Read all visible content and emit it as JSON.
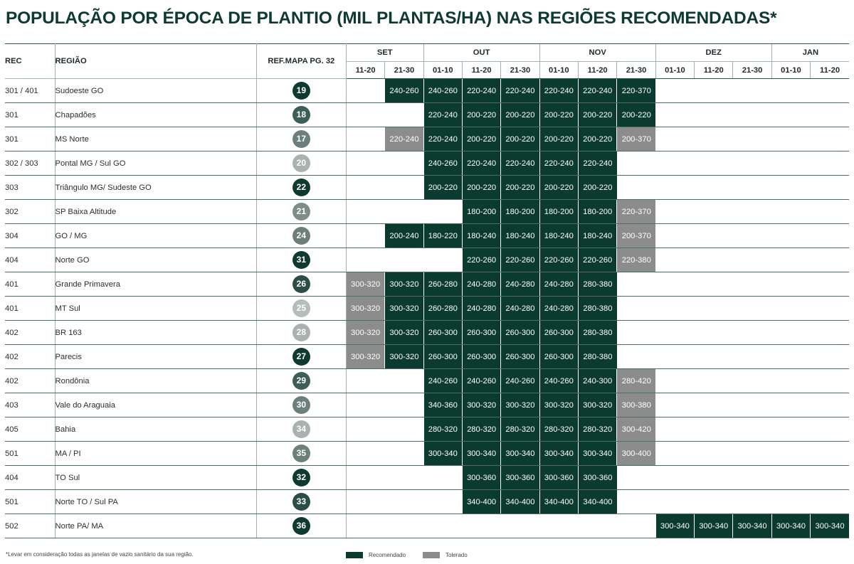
{
  "title": "POPULAÇÃO POR ÉPOCA DE PLANTIO (MIL PLANTAS/HA) NAS REGIÕES RECOMENDADAS*",
  "colors": {
    "recommended": "#0b3a2f",
    "tolerated": "#8c8c8c"
  },
  "header": {
    "rec": "REC",
    "region": "REGIÃO",
    "ref": "REF.MAPA PG. 32",
    "months": [
      {
        "name": "SET",
        "span": 2
      },
      {
        "name": "OUT",
        "span": 3
      },
      {
        "name": "NOV",
        "span": 3
      },
      {
        "name": "DEZ",
        "span": 3
      },
      {
        "name": "JAN",
        "span": 2
      }
    ],
    "periods": [
      "11-20",
      "21-30",
      "01-10",
      "11-20",
      "21-30",
      "01-10",
      "11-20",
      "21-30",
      "01-10",
      "11-20",
      "21-30",
      "01-10",
      "11-20"
    ]
  },
  "rows": [
    {
      "rec": "301 / 401",
      "region": "Sudoeste GO",
      "ref": "19",
      "ref_color": "#0e3a30",
      "cells": [
        null,
        [
          "240-260",
          "r"
        ],
        [
          "240-260",
          "r"
        ],
        [
          "220-240",
          "r"
        ],
        [
          "220-240",
          "r"
        ],
        [
          "220-240",
          "r"
        ],
        [
          "220-240",
          "r"
        ],
        [
          "220-370",
          "r"
        ],
        null,
        null,
        null,
        null,
        null
      ]
    },
    {
      "rec": "301",
      "region": "Chapadões",
      "ref": "18",
      "ref_color": "#3d5e56",
      "cells": [
        null,
        null,
        [
          "220-240",
          "r"
        ],
        [
          "200-220",
          "r"
        ],
        [
          "200-220",
          "r"
        ],
        [
          "200-220",
          "r"
        ],
        [
          "200-220",
          "r"
        ],
        [
          "200-220",
          "r"
        ],
        null,
        null,
        null,
        null,
        null
      ]
    },
    {
      "rec": "301",
      "region": "MS Norte",
      "ref": "17",
      "ref_color": "#6c7f7a",
      "cells": [
        null,
        [
          "220-240",
          "t"
        ],
        [
          "220-240",
          "r"
        ],
        [
          "200-220",
          "r"
        ],
        [
          "200-220",
          "r"
        ],
        [
          "200-220",
          "r"
        ],
        [
          "200-220",
          "r"
        ],
        [
          "200-370",
          "t"
        ],
        null,
        null,
        null,
        null,
        null
      ]
    },
    {
      "rec": "302 / 303",
      "region": "Pontal MG / Sul GO",
      "ref": "20",
      "ref_color": "#a9b2ae",
      "cells": [
        null,
        null,
        [
          "240-260",
          "r"
        ],
        [
          "220-240",
          "r"
        ],
        [
          "220-240",
          "r"
        ],
        [
          "220-240",
          "r"
        ],
        [
          "220-240",
          "r"
        ],
        null,
        null,
        null,
        null,
        null,
        null
      ]
    },
    {
      "rec": "303",
      "region": "Triângulo MG/ Sudeste GO",
      "ref": "22",
      "ref_color": "#0e3a30",
      "cells": [
        null,
        null,
        [
          "200-220",
          "r"
        ],
        [
          "200-220",
          "r"
        ],
        [
          "200-220",
          "r"
        ],
        [
          "200-220",
          "r"
        ],
        [
          "200-220",
          "r"
        ],
        null,
        null,
        null,
        null,
        null,
        null
      ]
    },
    {
      "rec": "302",
      "region": "SP Baixa Altitude",
      "ref": "21",
      "ref_color": "#7d8e89",
      "cells": [
        null,
        null,
        null,
        [
          "180-200",
          "r"
        ],
        [
          "180-200",
          "r"
        ],
        [
          "180-200",
          "r"
        ],
        [
          "180-200",
          "r"
        ],
        [
          "220-370",
          "t"
        ],
        null,
        null,
        null,
        null,
        null
      ]
    },
    {
      "rec": "304",
      "region": "GO / MG",
      "ref": "24",
      "ref_color": "#6c7f7a",
      "cells": [
        null,
        [
          "200-240",
          "r"
        ],
        [
          "180-220",
          "r"
        ],
        [
          "180-240",
          "r"
        ],
        [
          "180-240",
          "r"
        ],
        [
          "180-240",
          "r"
        ],
        [
          "180-240",
          "r"
        ],
        [
          "200-370",
          "t"
        ],
        null,
        null,
        null,
        null,
        null
      ]
    },
    {
      "rec": "404",
      "region": "Norte GO",
      "ref": "31",
      "ref_color": "#0e3a30",
      "cells": [
        null,
        null,
        null,
        [
          "220-260",
          "r"
        ],
        [
          "220-260",
          "r"
        ],
        [
          "220-260",
          "r"
        ],
        [
          "220-260",
          "r"
        ],
        [
          "220-380",
          "t"
        ],
        null,
        null,
        null,
        null,
        null
      ]
    },
    {
      "rec": "401",
      "region": "Grande Primavera",
      "ref": "26",
      "ref_color": "#2b4d45",
      "cells": [
        [
          "300-320",
          "t"
        ],
        [
          "300-320",
          "r"
        ],
        [
          "260-280",
          "r"
        ],
        [
          "240-280",
          "r"
        ],
        [
          "240-280",
          "r"
        ],
        [
          "240-280",
          "r"
        ],
        [
          "280-380",
          "r"
        ],
        null,
        null,
        null,
        null,
        null,
        null
      ]
    },
    {
      "rec": "401",
      "region": "MT Sul",
      "ref": "25",
      "ref_color": "#b5bdb9",
      "cells": [
        [
          "300-320",
          "t"
        ],
        [
          "300-320",
          "r"
        ],
        [
          "260-280",
          "r"
        ],
        [
          "240-280",
          "r"
        ],
        [
          "240-280",
          "r"
        ],
        [
          "240-280",
          "r"
        ],
        [
          "280-380",
          "r"
        ],
        null,
        null,
        null,
        null,
        null,
        null
      ]
    },
    {
      "rec": "402",
      "region": "BR 163",
      "ref": "28",
      "ref_color": "#a9b2ae",
      "cells": [
        [
          "300-320",
          "t"
        ],
        [
          "300-320",
          "r"
        ],
        [
          "260-300",
          "r"
        ],
        [
          "260-300",
          "r"
        ],
        [
          "260-300",
          "r"
        ],
        [
          "260-300",
          "r"
        ],
        [
          "280-380",
          "r"
        ],
        null,
        null,
        null,
        null,
        null,
        null
      ]
    },
    {
      "rec": "402",
      "region": "Parecis",
      "ref": "27",
      "ref_color": "#0e3a30",
      "cells": [
        [
          "300-320",
          "t"
        ],
        [
          "300-320",
          "r"
        ],
        [
          "260-300",
          "r"
        ],
        [
          "260-300",
          "r"
        ],
        [
          "260-300",
          "r"
        ],
        [
          "260-300",
          "r"
        ],
        [
          "280-380",
          "r"
        ],
        null,
        null,
        null,
        null,
        null,
        null
      ]
    },
    {
      "rec": "402",
      "region": "Rondônia",
      "ref": "29",
      "ref_color": "#3d5e56",
      "cells": [
        null,
        null,
        [
          "240-260",
          "r"
        ],
        [
          "240-260",
          "r"
        ],
        [
          "240-260",
          "r"
        ],
        [
          "240-260",
          "r"
        ],
        [
          "240-300",
          "r"
        ],
        [
          "280-420",
          "t"
        ],
        null,
        null,
        null,
        null,
        null
      ]
    },
    {
      "rec": "403",
      "region": "Vale do Araguaia",
      "ref": "30",
      "ref_color": "#6c7f7a",
      "cells": [
        null,
        null,
        [
          "340-360",
          "r"
        ],
        [
          "300-320",
          "r"
        ],
        [
          "300-320",
          "r"
        ],
        [
          "300-320",
          "r"
        ],
        [
          "300-320",
          "r"
        ],
        [
          "300-380",
          "t"
        ],
        null,
        null,
        null,
        null,
        null
      ]
    },
    {
      "rec": "405",
      "region": "Bahia",
      "ref": "34",
      "ref_color": "#a9b2ae",
      "cells": [
        null,
        null,
        [
          "280-320",
          "r"
        ],
        [
          "280-320",
          "r"
        ],
        [
          "280-320",
          "r"
        ],
        [
          "280-320",
          "r"
        ],
        [
          "280-320",
          "r"
        ],
        [
          "300-420",
          "t"
        ],
        null,
        null,
        null,
        null,
        null
      ]
    },
    {
      "rec": "501",
      "region": "MA / PI",
      "ref": "35",
      "ref_color": "#6c7f7a",
      "cells": [
        null,
        null,
        [
          "300-340",
          "r"
        ],
        [
          "300-340",
          "r"
        ],
        [
          "300-340",
          "r"
        ],
        [
          "300-340",
          "r"
        ],
        [
          "300-340",
          "r"
        ],
        [
          "300-400",
          "t"
        ],
        null,
        null,
        null,
        null,
        null
      ]
    },
    {
      "rec": "404",
      "region": "TO Sul",
      "ref": "32",
      "ref_color": "#0e3a30",
      "cells": [
        null,
        null,
        null,
        [
          "300-360",
          "r"
        ],
        [
          "300-360",
          "r"
        ],
        [
          "300-360",
          "r"
        ],
        [
          "300-360",
          "r"
        ],
        null,
        null,
        null,
        null,
        null,
        null
      ]
    },
    {
      "rec": "501",
      "region": "Norte TO / Sul PA",
      "ref": "33",
      "ref_color": "#2b4d45",
      "cells": [
        null,
        null,
        null,
        [
          "340-400",
          "r"
        ],
        [
          "340-400",
          "r"
        ],
        [
          "340-400",
          "r"
        ],
        [
          "340-400",
          "r"
        ],
        null,
        null,
        null,
        null,
        null,
        null
      ]
    },
    {
      "rec": "502",
      "region": "Norte PA/ MA",
      "ref": "36",
      "ref_color": "#0e3a30",
      "cells": [
        null,
        null,
        null,
        null,
        null,
        null,
        null,
        null,
        [
          "300-340",
          "r"
        ],
        [
          "300-340",
          "r"
        ],
        [
          "300-340",
          "r"
        ],
        [
          "300-340",
          "r"
        ],
        [
          "300-340",
          "r"
        ]
      ]
    }
  ],
  "footer": {
    "note": "*Levar em consideração todas as janelas de vazio sanitário da sua região.",
    "legend_recommended": "Recomendado",
    "legend_tolerated": "Tolerado"
  }
}
